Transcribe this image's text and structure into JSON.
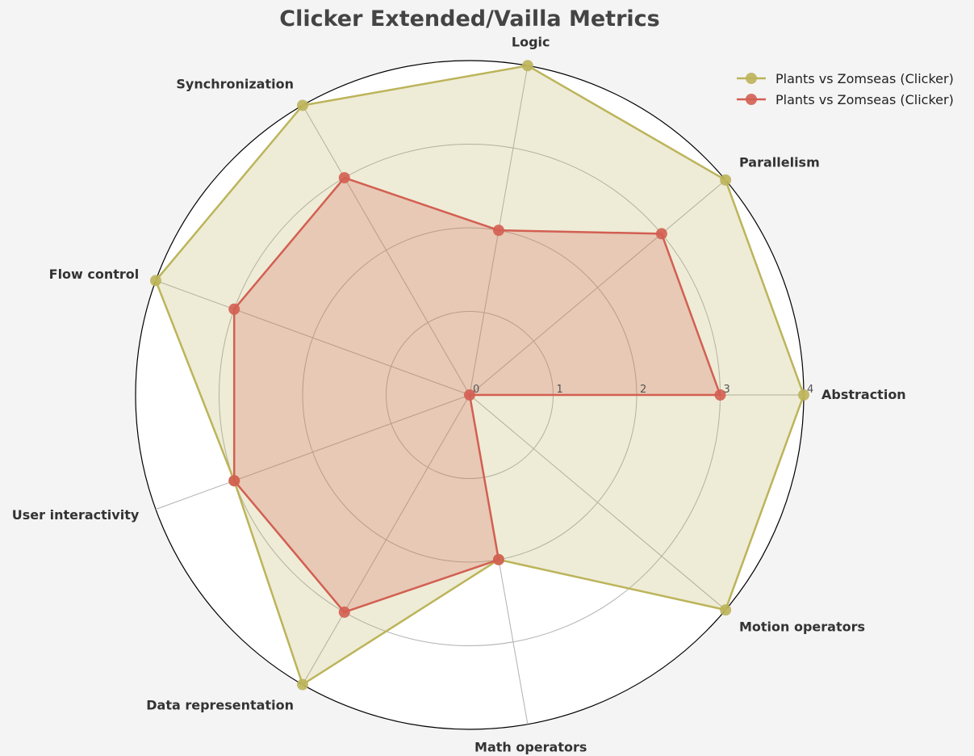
{
  "chart_data": {
    "type": "radar",
    "title": "Clicker Extended/Vailla Metrics",
    "axes": [
      "Abstraction",
      "Parallelism",
      "Logic",
      "Synchronization",
      "Flow control",
      "User interactivity",
      "Data representation",
      "Math operators",
      "Motion operators"
    ],
    "rlim": [
      0,
      4
    ],
    "rticks": [
      "0",
      "1",
      "2",
      "3",
      "4"
    ],
    "grid": true,
    "legend_position": "top-right",
    "series": [
      {
        "name": "Plants vs Zomseas (Clicker)",
        "color": "#bcb45a",
        "values": [
          4,
          4,
          4,
          4,
          4,
          3,
          4,
          2,
          4
        ]
      },
      {
        "name": "Plants vs Zomseas (Clicker)",
        "color": "#d35f52",
        "values": [
          3,
          3,
          2,
          3,
          3,
          3,
          3,
          2,
          0
        ]
      }
    ]
  }
}
